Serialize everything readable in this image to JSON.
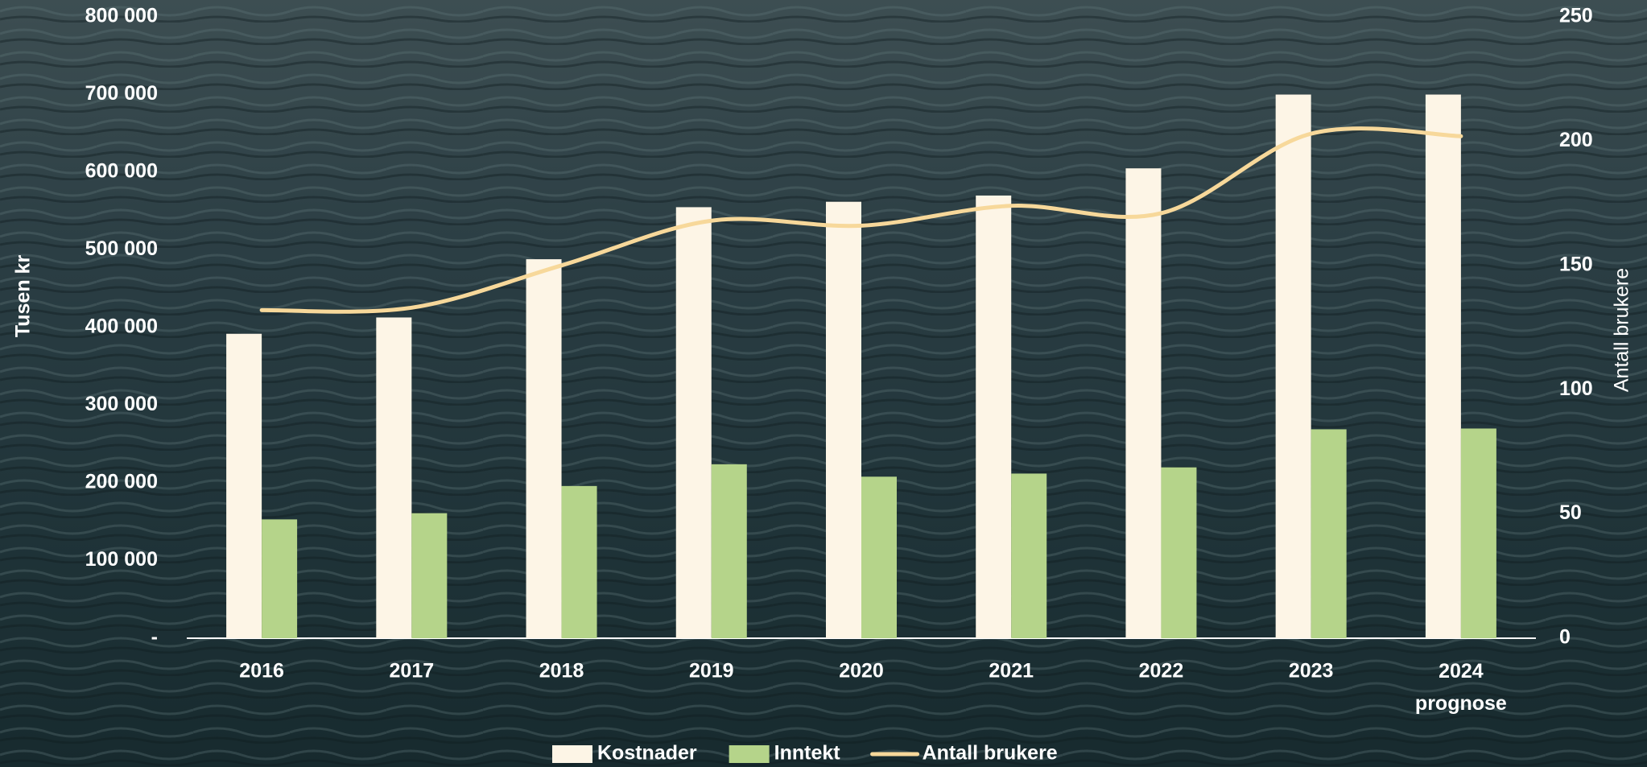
{
  "chart_data": {
    "type": "bar-line",
    "categories": [
      "2016",
      "2017",
      "2018",
      "2019",
      "2020",
      "2021",
      "2022",
      "2023",
      "2024\nprognose"
    ],
    "series": [
      {
        "name": "Kostnader",
        "color": "#fdf5e6",
        "type": "bar",
        "values": [
          392000,
          413000,
          488000,
          555000,
          562000,
          570000,
          605000,
          700000,
          700000
        ]
      },
      {
        "name": "Inntekt",
        "color": "#b5d48a",
        "type": "bar",
        "values": [
          153000,
          161000,
          196000,
          224000,
          208000,
          212000,
          220000,
          269000,
          270000
        ]
      },
      {
        "name": "Antall brukere",
        "color": "#f7d89a",
        "type": "line",
        "axis": "y2",
        "values": [
          132,
          133,
          150,
          168,
          166,
          174,
          171,
          203,
          202
        ]
      }
    ],
    "y_label": "Tusen kr",
    "y2_label": "Antall brukere",
    "ylim": [
      0,
      800000
    ],
    "yticks": [
      {
        "value": 0,
        "label": "-"
      },
      {
        "value": 100000,
        "label": "100 000"
      },
      {
        "value": 200000,
        "label": "200 000"
      },
      {
        "value": 300000,
        "label": "300 000"
      },
      {
        "value": 400000,
        "label": "400 000"
      },
      {
        "value": 500000,
        "label": "500 000"
      },
      {
        "value": 600000,
        "label": "600 000"
      },
      {
        "value": 700000,
        "label": "700 000"
      },
      {
        "value": 800000,
        "label": "800 000"
      }
    ],
    "y2lim": [
      0,
      250
    ],
    "y2ticks": [
      0,
      50,
      100,
      150,
      200,
      250
    ],
    "legend": "bottom"
  }
}
